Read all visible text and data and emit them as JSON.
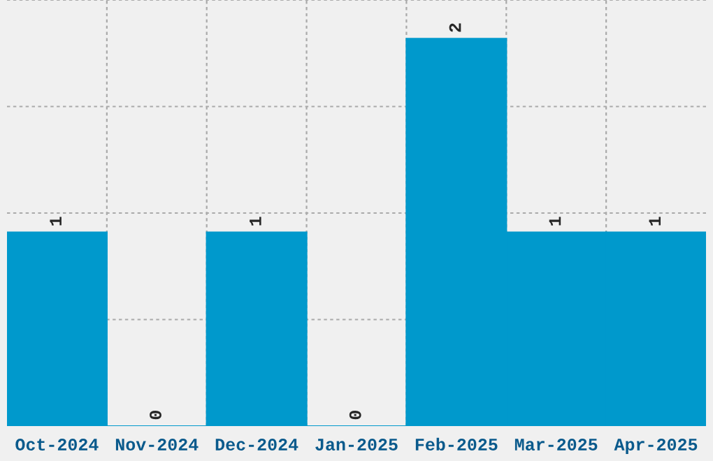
{
  "chart_data": {
    "type": "bar",
    "categories": [
      "Oct-2024",
      "Nov-2024",
      "Dec-2024",
      "Jan-2025",
      "Feb-2025",
      "Mar-2025",
      "Apr-2025"
    ],
    "values": [
      1,
      0,
      1,
      0,
      2,
      1,
      1
    ],
    "color": "#0099cc",
    "ylim": [
      0,
      2.2
    ],
    "tick_labels": "x",
    "grid": true,
    "data_labels": true
  }
}
